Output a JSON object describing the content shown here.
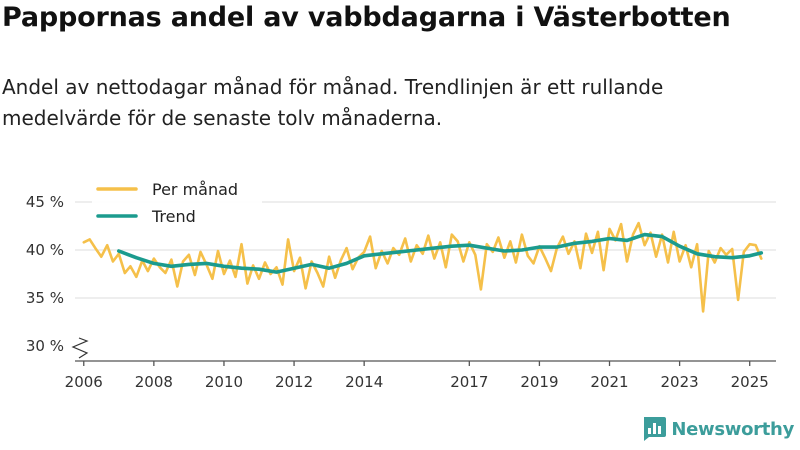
{
  "title": "Pappornas andel av vabbdagarna i Västerbotten",
  "subtitle": "Andel av nettodagar månad för månad. Trendlinjen är ett rullande medelvärde för de senaste tolv månaderna.",
  "brand": {
    "name": "Newsworthy",
    "color": "#3c9d9b",
    "icon": "bar-chart-logo-icon"
  },
  "chart_data": {
    "type": "line",
    "title": "Pappornas andel av vabbdagarna i Västerbotten",
    "xlabel": "",
    "ylabel": "",
    "xlim": [
      2005.75,
      2025.75
    ],
    "ylim": [
      30,
      45
    ],
    "y_axis_break": true,
    "grid": "horizontal",
    "y_ticks": [
      {
        "value": 30,
        "label": "30 %"
      },
      {
        "value": 35,
        "label": "35 %"
      },
      {
        "value": 40,
        "label": "40 %"
      },
      {
        "value": 45,
        "label": "45 %"
      }
    ],
    "x_ticks": [
      {
        "value": 2006,
        "label": "2006"
      },
      {
        "value": 2008,
        "label": "2008"
      },
      {
        "value": 2010,
        "label": "2010"
      },
      {
        "value": 2012,
        "label": "2012"
      },
      {
        "value": 2014,
        "label": "2014"
      },
      {
        "value": 2017,
        "label": "2017"
      },
      {
        "value": 2019,
        "label": "2019"
      },
      {
        "value": 2021,
        "label": "2021"
      },
      {
        "value": 2023,
        "label": "2023"
      },
      {
        "value": 2025,
        "label": "2025"
      }
    ],
    "legend": {
      "position": "top-left"
    },
    "series": [
      {
        "name": "Per månad",
        "color": "#f5c04a",
        "x": [
          2006.0,
          2006.17,
          2006.33,
          2006.5,
          2006.67,
          2006.83,
          2007.0,
          2007.17,
          2007.33,
          2007.5,
          2007.67,
          2007.83,
          2008.0,
          2008.17,
          2008.33,
          2008.5,
          2008.67,
          2008.83,
          2009.0,
          2009.17,
          2009.33,
          2009.5,
          2009.67,
          2009.83,
          2010.0,
          2010.17,
          2010.33,
          2010.5,
          2010.67,
          2010.83,
          2011.0,
          2011.17,
          2011.33,
          2011.5,
          2011.67,
          2011.83,
          2012.0,
          2012.17,
          2012.33,
          2012.5,
          2012.67,
          2012.83,
          2013.0,
          2013.17,
          2013.33,
          2013.5,
          2013.67,
          2013.83,
          2014.0,
          2014.17,
          2014.33,
          2014.5,
          2014.67,
          2014.83,
          2015.0,
          2015.17,
          2015.33,
          2015.5,
          2015.67,
          2015.83,
          2016.0,
          2016.17,
          2016.33,
          2016.5,
          2016.67,
          2016.83,
          2017.0,
          2017.17,
          2017.33,
          2017.5,
          2017.67,
          2017.83,
          2018.0,
          2018.17,
          2018.33,
          2018.5,
          2018.67,
          2018.83,
          2019.0,
          2019.17,
          2019.33,
          2019.5,
          2019.67,
          2019.83,
          2020.0,
          2020.17,
          2020.33,
          2020.5,
          2020.67,
          2020.83,
          2021.0,
          2021.17,
          2021.33,
          2021.5,
          2021.67,
          2021.83,
          2022.0,
          2022.17,
          2022.33,
          2022.5,
          2022.67,
          2022.83,
          2023.0,
          2023.17,
          2023.33,
          2023.5,
          2023.67,
          2023.83,
          2024.0,
          2024.17,
          2024.33,
          2024.5,
          2024.67,
          2024.83,
          2025.0,
          2025.17,
          2025.33
        ],
        "values": [
          40.8,
          41.1,
          40.2,
          39.3,
          40.5,
          38.8,
          39.6,
          37.6,
          38.3,
          37.2,
          38.9,
          37.8,
          39.1,
          38.2,
          37.6,
          39.0,
          36.2,
          38.8,
          39.5,
          37.4,
          39.8,
          38.5,
          37.0,
          39.9,
          37.5,
          38.9,
          37.2,
          40.6,
          36.5,
          38.4,
          37.0,
          38.7,
          37.5,
          38.2,
          36.4,
          41.1,
          37.8,
          39.2,
          36.0,
          38.8,
          37.6,
          36.2,
          39.3,
          37.1,
          38.9,
          40.2,
          38.0,
          39.2,
          39.8,
          41.4,
          38.1,
          39.9,
          38.6,
          40.2,
          39.5,
          41.2,
          38.8,
          40.5,
          39.6,
          41.5,
          39.1,
          40.8,
          38.2,
          41.6,
          40.9,
          38.8,
          40.8,
          39.5,
          35.9,
          40.6,
          39.8,
          41.3,
          39.2,
          40.9,
          38.7,
          41.6,
          39.4,
          38.6,
          40.4,
          39.1,
          37.8,
          40.2,
          41.4,
          39.6,
          40.9,
          38.1,
          41.7,
          39.7,
          41.9,
          37.9,
          42.2,
          41.0,
          42.7,
          38.8,
          41.6,
          42.8,
          40.5,
          41.8,
          39.3,
          41.6,
          38.7,
          41.9,
          38.8,
          40.5,
          38.2,
          40.6,
          33.6,
          39.9,
          38.7,
          40.2,
          39.5,
          40.1,
          34.8,
          39.8,
          40.6,
          40.5,
          39.1
        ]
      },
      {
        "name": "Trend",
        "color": "#1b9b8e",
        "x": [
          2007.0,
          2007.5,
          2008.0,
          2008.5,
          2009.0,
          2009.5,
          2010.0,
          2010.5,
          2011.0,
          2011.5,
          2012.0,
          2012.5,
          2013.0,
          2013.5,
          2014.0,
          2014.5,
          2015.0,
          2015.5,
          2016.0,
          2016.5,
          2017.0,
          2017.5,
          2018.0,
          2018.5,
          2019.0,
          2019.5,
          2020.0,
          2020.5,
          2021.0,
          2021.5,
          2022.0,
          2022.5,
          2023.0,
          2023.5,
          2024.0,
          2024.5,
          2025.0,
          2025.33
        ],
        "values": [
          39.9,
          39.2,
          38.6,
          38.3,
          38.5,
          38.6,
          38.3,
          38.1,
          38.0,
          37.7,
          38.1,
          38.5,
          38.1,
          38.6,
          39.4,
          39.6,
          39.8,
          40.0,
          40.2,
          40.4,
          40.5,
          40.2,
          39.9,
          40.0,
          40.3,
          40.3,
          40.7,
          40.9,
          41.2,
          41.0,
          41.6,
          41.4,
          40.4,
          39.6,
          39.3,
          39.2,
          39.4,
          39.7
        ]
      }
    ]
  }
}
